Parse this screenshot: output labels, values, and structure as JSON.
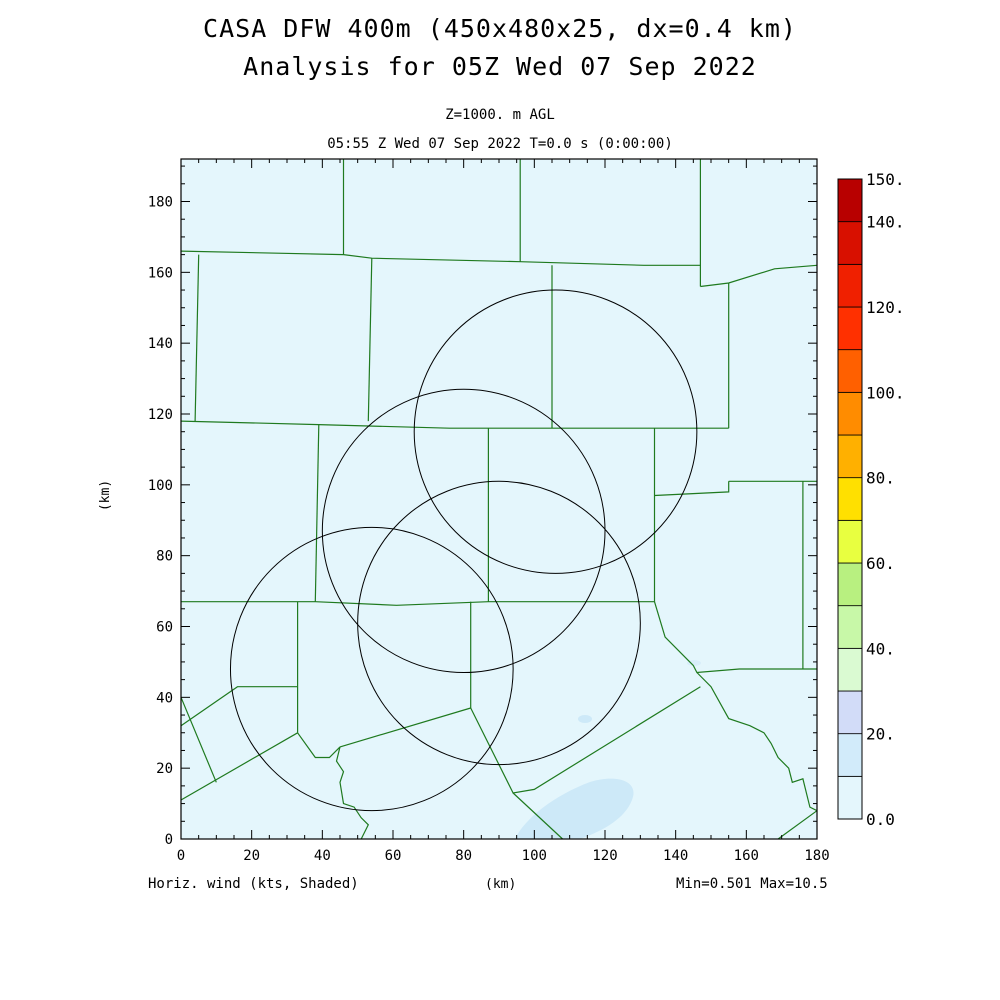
{
  "header": {
    "title_line1": "CASA DFW 400m (450x480x25, dx=0.4 km)",
    "title_line2": "Analysis for 05Z Wed 07 Sep 2022",
    "level": "Z=1000. m AGL",
    "time": "05:55 Z Wed 07 Sep 2022   T=0.0 s (0:00:00)"
  },
  "footer": {
    "field": "Horiz. wind (kts, Shaded)",
    "x_unit": "(km)",
    "minmax": "Min=0.501 Max=10.5"
  },
  "chart_data": {
    "type": "heatmap",
    "field": "horizontal wind speed",
    "units": "kts",
    "xlabel": "(km)",
    "ylabel": "(km)",
    "xlim": [
      0,
      180
    ],
    "ylim": [
      0,
      192
    ],
    "xticks": [
      0,
      20,
      40,
      60,
      80,
      100,
      120,
      140,
      160,
      180
    ],
    "yticks": [
      0,
      20,
      40,
      60,
      80,
      100,
      120,
      140,
      160,
      180
    ],
    "min": 0.501,
    "max": 10.5,
    "background_color": "#e4f6fc",
    "weak_shade_color": "#cde9f8",
    "colorbar": {
      "levels": [
        0,
        10,
        20,
        30,
        40,
        50,
        60,
        70,
        80,
        90,
        100,
        110,
        120,
        130,
        140,
        150
      ],
      "labels": [
        {
          "value": 0,
          "text": "0.0"
        },
        {
          "value": 20,
          "text": "20."
        },
        {
          "value": 40,
          "text": "40."
        },
        {
          "value": 60,
          "text": "60."
        },
        {
          "value": 80,
          "text": "80."
        },
        {
          "value": 100,
          "text": "100."
        },
        {
          "value": 120,
          "text": "120."
        },
        {
          "value": 140,
          "text": "140."
        },
        {
          "value": 150,
          "text": "150."
        }
      ],
      "colors": [
        "#e4f6fc",
        "#d2ebfa",
        "#d2dcf8",
        "#dafad2",
        "#c8f8a8",
        "#b8f080",
        "#e8ff40",
        "#ffe000",
        "#ffb000",
        "#ff8c00",
        "#ff6000",
        "#ff3000",
        "#f02000",
        "#d81000",
        "#b80000"
      ]
    },
    "radar_rings": [
      {
        "center": [
          54,
          48
        ],
        "radius_km": 40
      },
      {
        "center": [
          80,
          87
        ],
        "radius_km": 40
      },
      {
        "center": [
          106,
          115
        ],
        "radius_km": 40
      },
      {
        "center": [
          90,
          61
        ],
        "radius_km": 40
      }
    ],
    "county_lines": [
      [
        [
          0,
          166
        ],
        [
          46,
          165
        ],
        [
          54,
          164
        ],
        [
          96,
          163
        ],
        [
          131,
          162
        ],
        [
          147,
          162
        ]
      ],
      [
        [
          147,
          156
        ],
        [
          155,
          157
        ],
        [
          168,
          161
        ],
        [
          180,
          162
        ]
      ],
      [
        [
          46,
          192
        ],
        [
          46,
          165
        ]
      ],
      [
        [
          96,
          192
        ],
        [
          96,
          163
        ]
      ],
      [
        [
          147,
          192
        ],
        [
          147,
          156
        ]
      ],
      [
        [
          5,
          165
        ],
        [
          4,
          118
        ]
      ],
      [
        [
          54,
          164
        ],
        [
          53,
          118
        ]
      ],
      [
        [
          105,
          162
        ],
        [
          105,
          116
        ]
      ],
      [
        [
          155,
          157
        ],
        [
          155,
          116
        ]
      ],
      [
        [
          0,
          118
        ],
        [
          39,
          117
        ],
        [
          76,
          116
        ],
        [
          122,
          116
        ],
        [
          155,
          116
        ]
      ],
      [
        [
          39,
          117
        ],
        [
          38,
          67
        ]
      ],
      [
        [
          87,
          116
        ],
        [
          87,
          67
        ]
      ],
      [
        [
          134,
          116
        ],
        [
          134,
          97
        ]
      ],
      [
        [
          134,
          97
        ],
        [
          155,
          98
        ],
        [
          155,
          101
        ]
      ],
      [
        [
          155,
          101
        ],
        [
          176,
          101
        ],
        [
          180,
          101
        ]
      ],
      [
        [
          176,
          101
        ],
        [
          176,
          48
        ]
      ],
      [
        [
          0,
          67
        ],
        [
          33,
          67
        ],
        [
          38,
          67
        ],
        [
          61,
          66
        ],
        [
          87,
          67
        ],
        [
          134,
          67
        ]
      ],
      [
        [
          33,
          67
        ],
        [
          33,
          30
        ]
      ],
      [
        [
          82,
          67
        ],
        [
          82,
          37
        ]
      ],
      [
        [
          134,
          67
        ],
        [
          134,
          97
        ]
      ],
      [
        [
          0,
          11
        ],
        [
          33,
          30
        ]
      ],
      [
        [
          0,
          32
        ],
        [
          16,
          43
        ],
        [
          33,
          43
        ]
      ],
      [
        [
          0,
          40
        ],
        [
          10,
          16
        ]
      ],
      [
        [
          33,
          30
        ],
        [
          38,
          23
        ],
        [
          42,
          23
        ],
        [
          45,
          26
        ]
      ],
      [
        [
          45,
          26
        ],
        [
          82,
          37
        ]
      ],
      [
        [
          82,
          37
        ],
        [
          94,
          13
        ],
        [
          100,
          14
        ],
        [
          147,
          43
        ]
      ],
      [
        [
          94,
          13
        ],
        [
          108,
          0
        ]
      ],
      [
        [
          134,
          67
        ],
        [
          137,
          57
        ],
        [
          143,
          51
        ],
        [
          145,
          49
        ],
        [
          146,
          47
        ],
        [
          158,
          48
        ],
        [
          176,
          48
        ],
        [
          180,
          48
        ]
      ],
      [
        [
          146,
          47
        ],
        [
          150,
          43
        ],
        [
          155,
          34
        ],
        [
          161,
          32
        ],
        [
          165,
          30
        ],
        [
          167,
          27
        ],
        [
          169,
          23
        ],
        [
          172,
          20
        ],
        [
          173,
          16
        ],
        [
          176,
          17
        ],
        [
          177,
          13
        ],
        [
          178,
          9
        ],
        [
          180,
          8
        ]
      ],
      [
        [
          169,
          0
        ],
        [
          180,
          8
        ]
      ],
      [
        [
          45,
          26
        ],
        [
          44,
          22
        ],
        [
          46,
          19
        ],
        [
          45,
          16
        ],
        [
          46,
          10
        ],
        [
          49,
          9
        ],
        [
          51,
          6
        ],
        [
          53,
          4
        ],
        [
          51,
          0
        ]
      ]
    ]
  }
}
